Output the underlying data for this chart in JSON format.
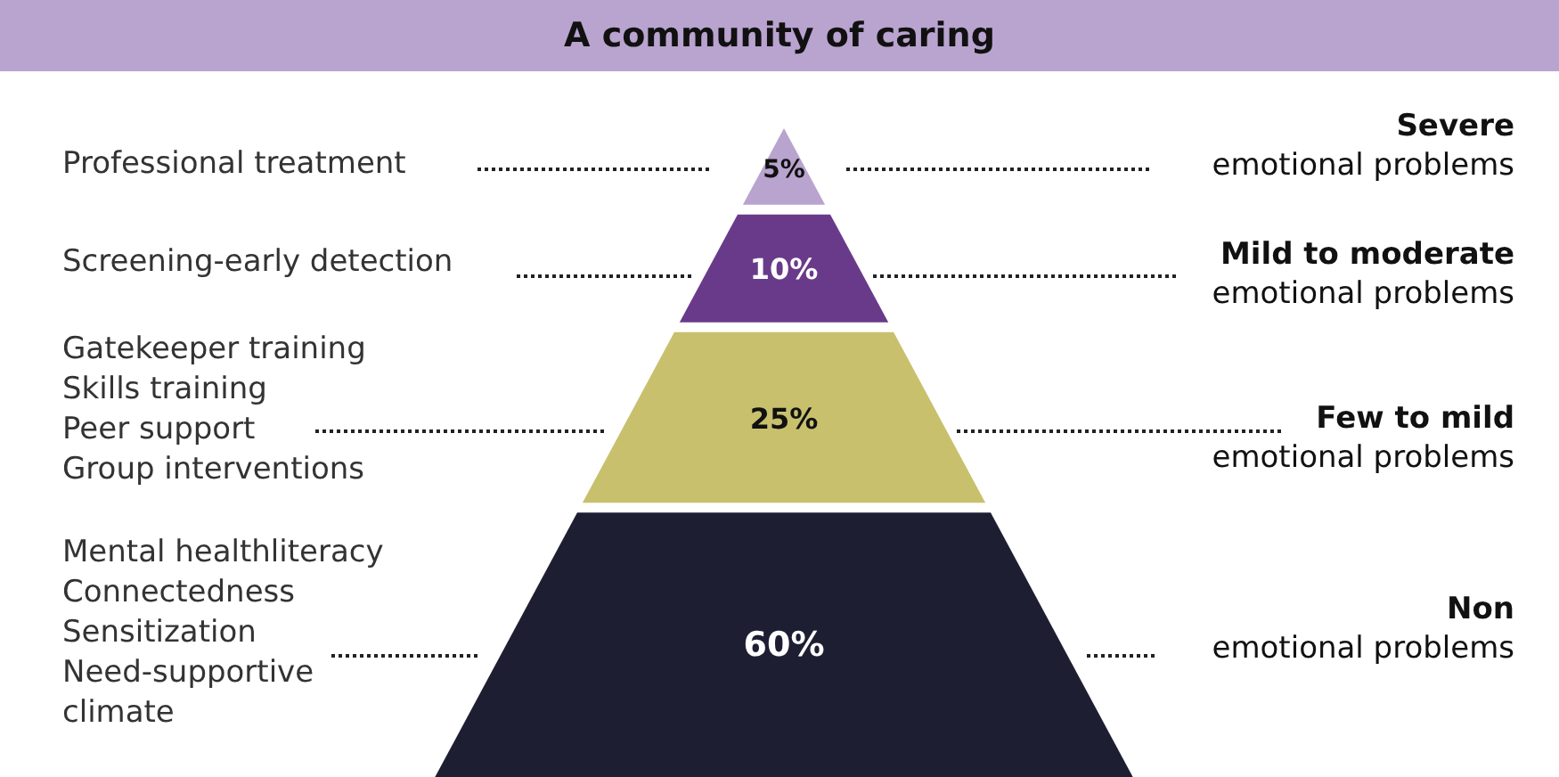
{
  "chart_data": {
    "type": "other",
    "title": "A community of caring",
    "categories": [
      "Severe\nemotional problems",
      "Mild to moderate\nemotional problems",
      "Few to mild\nemotional problems",
      "Non\nemotional problems"
    ],
    "values": [
      5,
      10,
      25,
      60
    ],
    "colors": [
      "#b9a3cf",
      "#6a3a8a",
      "#c9c06e",
      "#1e1e33"
    ],
    "value_labels": [
      "5%",
      "10%",
      "25%",
      "60%"
    ],
    "annotations": [
      "Professional treatment",
      "Screening-early detection",
      "Gatekeeper training\nSkills training\nPeer support\nGroup interventions",
      "Mental healthliteracy\nConnectedness\nSensitization\nNeed-supportive\nclimate"
    ]
  }
}
